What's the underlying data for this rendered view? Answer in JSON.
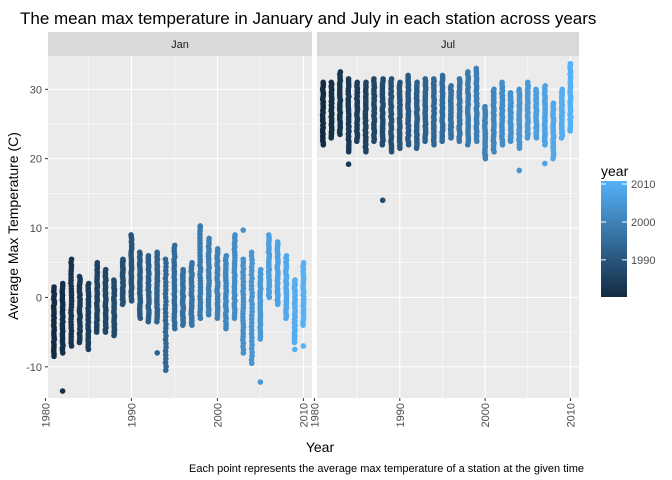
{
  "chart_data": {
    "type": "scatter",
    "title": "The mean max temperature in January and July in each station across years",
    "xlabel": "Year",
    "ylabel": "Average Max Temperature (C)",
    "caption": "Each point represents the average max temperature of a station at the given time",
    "xlim": [
      1980.3,
      2011.0
    ],
    "ylim": [
      -14.5,
      34.8
    ],
    "x_ticks": [
      1980,
      1990,
      2000,
      2010
    ],
    "x_tick_labels": [
      "1980",
      "1990",
      "2000",
      "2010"
    ],
    "y_ticks": [
      -10,
      0,
      10,
      20,
      30
    ],
    "y_tick_labels": [
      "-10",
      "0",
      "10",
      "20",
      "30"
    ],
    "grid": true,
    "legend": {
      "title": "year",
      "position": "right",
      "type": "colorbar",
      "range": [
        1981,
        2010
      ],
      "ticks": [
        1990,
        2000,
        2010
      ],
      "tick_labels": [
        "1990",
        "2000",
        "2010"
      ],
      "low_color": "#132B43",
      "high_color": "#56B1F7"
    },
    "colors": {
      "panel_background": "#ebebeb",
      "strip_background": "#d9d9d9",
      "grid": "#ffffff"
    },
    "facets": [
      {
        "name": "Jan",
        "points": [
          {
            "year": 1981,
            "min": -8.5,
            "max": 1.5
          },
          {
            "year": 1982,
            "min": -8.0,
            "max": 2.0
          },
          {
            "year": 1983,
            "min": -7.0,
            "max": 5.5
          },
          {
            "year": 1984,
            "min": -6.5,
            "max": 3.0
          },
          {
            "year": 1985,
            "min": -7.5,
            "max": 2.0
          },
          {
            "year": 1986,
            "min": -5.0,
            "max": 5.0
          },
          {
            "year": 1987,
            "min": -5.0,
            "max": 4.0
          },
          {
            "year": 1988,
            "min": -5.5,
            "max": 2.5
          },
          {
            "year": 1989,
            "min": -1.0,
            "max": 5.5
          },
          {
            "year": 1990,
            "min": -0.5,
            "max": 9.0
          },
          {
            "year": 1991,
            "min": -3.0,
            "max": 6.5
          },
          {
            "year": 1992,
            "min": -3.5,
            "max": 6.0
          },
          {
            "year": 1993,
            "min": -3.5,
            "max": 6.5
          },
          {
            "year": 1994,
            "min": -10.5,
            "max": 5.5
          },
          {
            "year": 1995,
            "min": -4.5,
            "max": 7.5
          },
          {
            "year": 1996,
            "min": -4.0,
            "max": 4.0
          },
          {
            "year": 1997,
            "min": -4.0,
            "max": 5.0
          },
          {
            "year": 1998,
            "min": -3.0,
            "max": 10.0
          },
          {
            "year": 1999,
            "min": -2.5,
            "max": 8.5
          },
          {
            "year": 2000,
            "min": -3.0,
            "max": 7.0
          },
          {
            "year": 2001,
            "min": -4.5,
            "max": 6.0
          },
          {
            "year": 2002,
            "min": -3.0,
            "max": 9.0
          },
          {
            "year": 2003,
            "min": -8.0,
            "max": 5.5
          },
          {
            "year": 2004,
            "min": -9.0,
            "max": 6.5
          },
          {
            "year": 2005,
            "min": -6.0,
            "max": 4.0
          },
          {
            "year": 2006,
            "min": 0.0,
            "max": 9.0
          },
          {
            "year": 2007,
            "min": -1.0,
            "max": 8.0
          },
          {
            "year": 2008,
            "min": -3.0,
            "max": 6.0
          },
          {
            "year": 2009,
            "min": -6.5,
            "max": 2.5
          },
          {
            "year": 2010,
            "min": -4.0,
            "max": 5.0
          }
        ],
        "outliers": [
          {
            "year": 1982,
            "value": -13.5
          },
          {
            "year": 1993,
            "value": -8.0
          },
          {
            "year": 1998,
            "value": 10.3
          },
          {
            "year": 2003,
            "value": 9.7
          },
          {
            "year": 2004,
            "value": -9.5
          },
          {
            "year": 2005,
            "value": -12.2
          },
          {
            "year": 2009,
            "value": -7.5
          },
          {
            "year": 2010,
            "value": -7.0
          }
        ]
      },
      {
        "name": "Jul",
        "points": [
          {
            "year": 1981,
            "min": 22.0,
            "max": 31.0
          },
          {
            "year": 1982,
            "min": 23.0,
            "max": 31.0
          },
          {
            "year": 1983,
            "min": 23.5,
            "max": 32.5
          },
          {
            "year": 1984,
            "min": 21.0,
            "max": 31.5
          },
          {
            "year": 1985,
            "min": 22.5,
            "max": 31.0
          },
          {
            "year": 1986,
            "min": 21.0,
            "max": 31.0
          },
          {
            "year": 1987,
            "min": 22.5,
            "max": 31.5
          },
          {
            "year": 1988,
            "min": 22.0,
            "max": 31.5
          },
          {
            "year": 1989,
            "min": 21.0,
            "max": 31.5
          },
          {
            "year": 1990,
            "min": 21.5,
            "max": 31.0
          },
          {
            "year": 1991,
            "min": 22.0,
            "max": 32.0
          },
          {
            "year": 1992,
            "min": 21.5,
            "max": 31.0
          },
          {
            "year": 1993,
            "min": 22.5,
            "max": 31.5
          },
          {
            "year": 1994,
            "min": 22.0,
            "max": 31.5
          },
          {
            "year": 1995,
            "min": 22.5,
            "max": 32.0
          },
          {
            "year": 1996,
            "min": 23.0,
            "max": 30.5
          },
          {
            "year": 1997,
            "min": 22.5,
            "max": 31.5
          },
          {
            "year": 1998,
            "min": 22.0,
            "max": 32.5
          },
          {
            "year": 1999,
            "min": 22.5,
            "max": 33.0
          },
          {
            "year": 2000,
            "min": 20.0,
            "max": 27.5
          },
          {
            "year": 2001,
            "min": 21.0,
            "max": 30.0
          },
          {
            "year": 2002,
            "min": 22.0,
            "max": 31.0
          },
          {
            "year": 2003,
            "min": 22.5,
            "max": 29.5
          },
          {
            "year": 2004,
            "min": 21.5,
            "max": 30.0
          },
          {
            "year": 2005,
            "min": 23.0,
            "max": 31.0
          },
          {
            "year": 2006,
            "min": 23.0,
            "max": 30.0
          },
          {
            "year": 2007,
            "min": 22.0,
            "max": 30.5
          },
          {
            "year": 2008,
            "min": 20.0,
            "max": 28.0
          },
          {
            "year": 2009,
            "min": 23.0,
            "max": 30.0
          },
          {
            "year": 2010,
            "min": 24.0,
            "max": 33.5
          }
        ],
        "outliers": [
          {
            "year": 1984,
            "value": 19.2
          },
          {
            "year": 1988,
            "value": 14.0
          },
          {
            "year": 2004,
            "value": 18.3
          },
          {
            "year": 2007,
            "value": 19.3
          },
          {
            "year": 2010,
            "value": 33.7
          }
        ]
      }
    ]
  }
}
